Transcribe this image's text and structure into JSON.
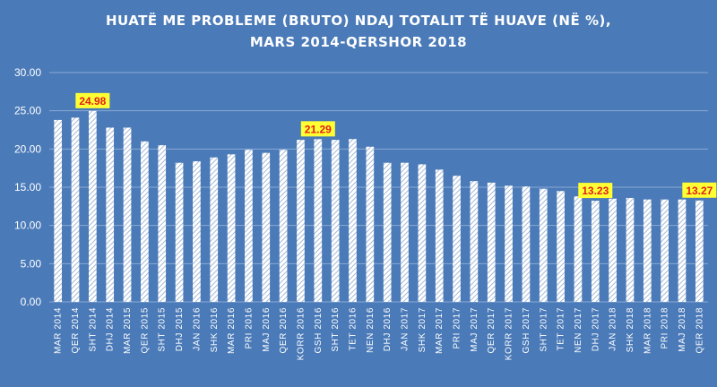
{
  "chart_data": {
    "type": "bar",
    "title_lines": [
      "HUATË ME PROBLEME (BRUTO) NDAJ TOTALIT TË HUAVE (NË %),",
      "MARS 2014-QERSHOR 2018"
    ],
    "xlabel": "",
    "ylabel": "",
    "ylim": [
      0,
      30
    ],
    "yticks": [
      "0.00",
      "5.00",
      "10.00",
      "15.00",
      "20.00",
      "25.00",
      "30.00"
    ],
    "grid": true,
    "categories": [
      "MAR 2014",
      "QER 2014",
      "SHT 2014",
      "DHJ 2014",
      "MAR 2015",
      "QER 2015",
      "SHT 2015",
      "DHJ 2015",
      "JAN 2016",
      "SHK 2016",
      "MAR 2016",
      "PRI 2016",
      "MAJ 2016",
      "QER 2016",
      "KORR 2016",
      "GSH 2016",
      "SHT 2016",
      "TET 2016",
      "NEN 2016",
      "DHJ 2016",
      "JAN 2017",
      "SHK 2017",
      "MAR 2017",
      "PRI 2017",
      "MAJ 2017",
      "QER 2017",
      "KORR 2017",
      "GSH 2017",
      "SHT 2017",
      "TET 2017",
      "NEN 2017",
      "DHJ 2017",
      "JAN 2018",
      "SHK 2018",
      "MAR 2018",
      "PRI 2018",
      "MAJ 2018",
      "QER 2018"
    ],
    "values": [
      23.8,
      24.1,
      24.98,
      22.8,
      22.8,
      21.0,
      20.5,
      18.2,
      18.4,
      18.9,
      19.3,
      19.9,
      19.5,
      19.9,
      21.2,
      21.29,
      21.2,
      21.3,
      20.3,
      18.2,
      18.2,
      18.0,
      17.3,
      16.5,
      15.8,
      15.6,
      15.2,
      15.1,
      14.8,
      14.5,
      13.8,
      13.23,
      13.5,
      13.6,
      13.4,
      13.4,
      13.4,
      13.27
    ],
    "callouts": [
      {
        "category": "SHT 2014",
        "label": "24.98"
      },
      {
        "category": "GSH 2016",
        "label": "21.29"
      },
      {
        "category": "DHJ 2017",
        "label": "13.23"
      },
      {
        "category": "QER 2018",
        "label": "13.27"
      }
    ],
    "colors": {
      "background": "#4a7ab8",
      "bar_fill": "#ffffff",
      "bar_hatch": "#8fa9cc",
      "grid": "#8aaad4",
      "callout_bg": "#ffff33",
      "callout_text": "#e0201a"
    }
  }
}
